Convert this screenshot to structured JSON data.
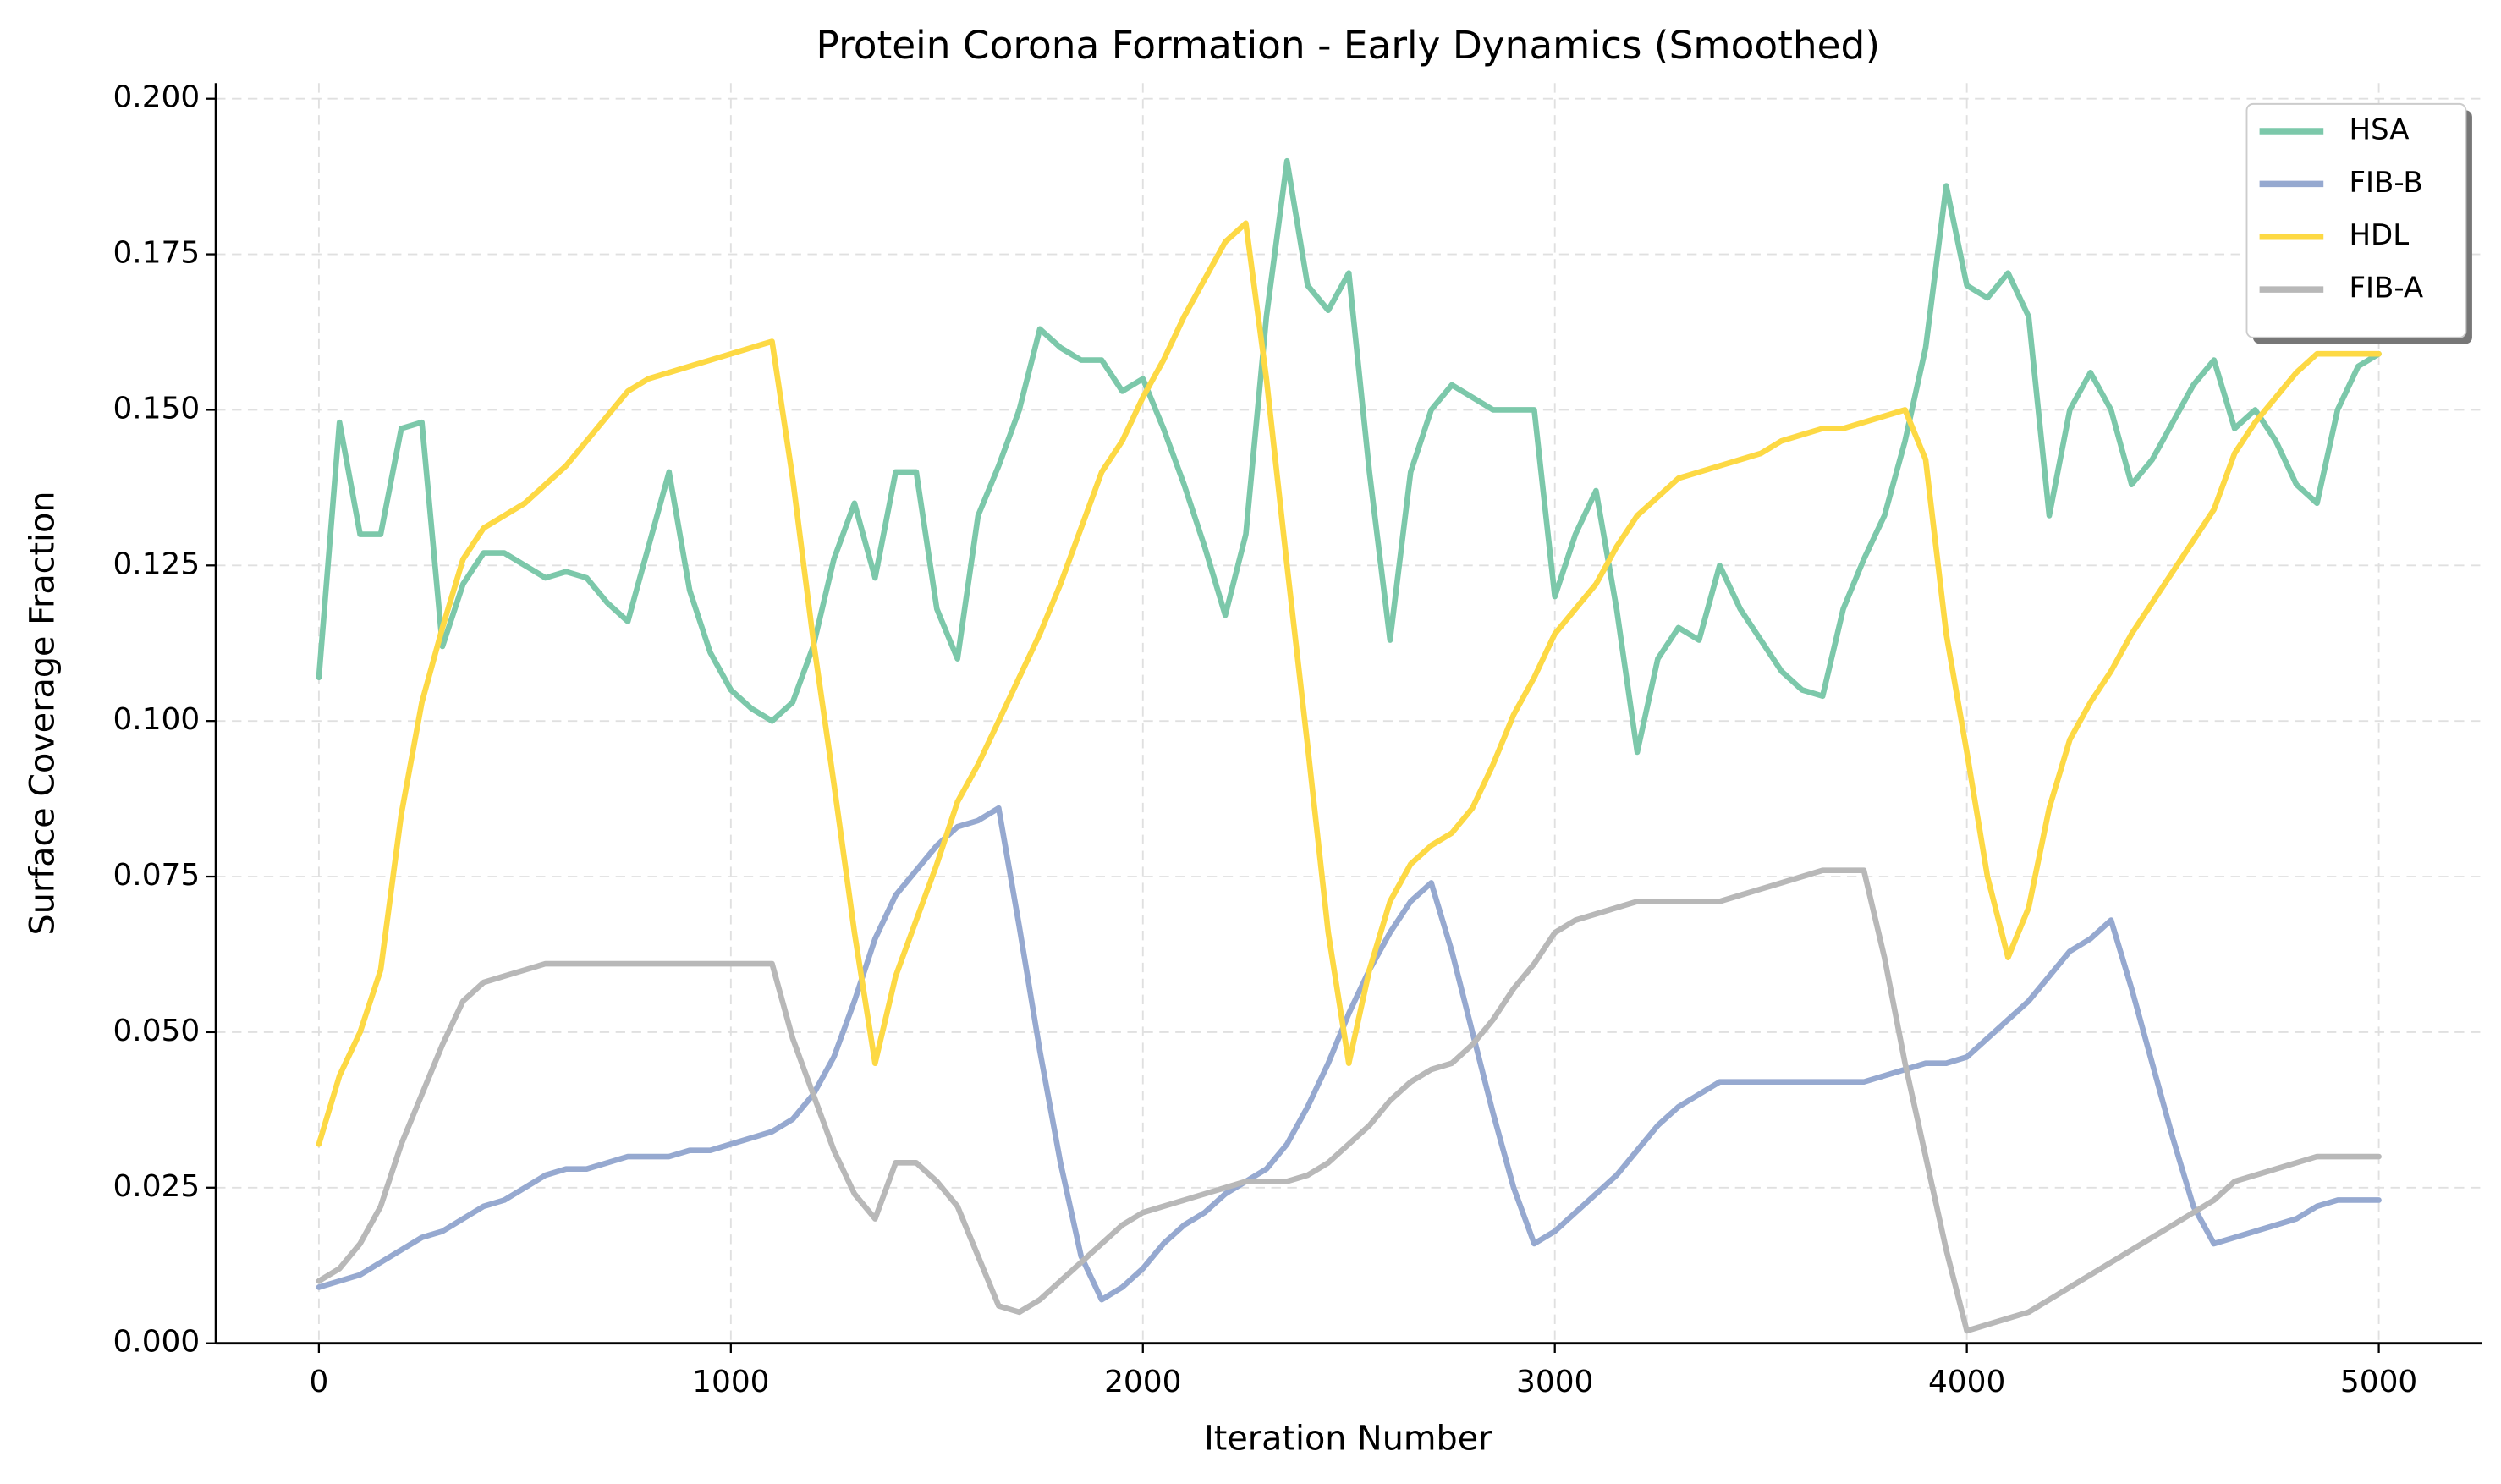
{
  "chart_data": {
    "type": "line",
    "title": "Protein Corona Formation - Early Dynamics (Smoothed)",
    "x_label": "Iteration Number",
    "y_label": "Surface Coverage Fraction",
    "x": [
      0,
      50,
      100,
      150,
      200,
      250,
      300,
      350,
      400,
      450,
      500,
      550,
      600,
      650,
      700,
      750,
      800,
      850,
      900,
      950,
      1000,
      1050,
      1100,
      1150,
      1200,
      1250,
      1300,
      1350,
      1400,
      1450,
      1500,
      1550,
      1600,
      1650,
      1700,
      1750,
      1800,
      1850,
      1900,
      1950,
      2000,
      2050,
      2100,
      2150,
      2200,
      2250,
      2300,
      2350,
      2400,
      2450,
      2500,
      2550,
      2600,
      2650,
      2700,
      2750,
      2800,
      2850,
      2900,
      2950,
      3000,
      3050,
      3100,
      3150,
      3200,
      3250,
      3300,
      3350,
      3400,
      3450,
      3500,
      3550,
      3600,
      3650,
      3700,
      3750,
      3800,
      3850,
      3900,
      3950,
      4000,
      4050,
      4100,
      4150,
      4200,
      4250,
      4300,
      4350,
      4400,
      4450,
      4500,
      4550,
      4600,
      4650,
      4700,
      4750,
      4800,
      4850,
      4900,
      4950,
      5000
    ],
    "series": [
      {
        "name": "HSA",
        "color": "#7cc8aa",
        "values": [
          0.107,
          0.148,
          0.13,
          0.13,
          0.147,
          0.148,
          0.112,
          0.122,
          0.127,
          0.127,
          0.125,
          0.123,
          0.124,
          0.123,
          0.119,
          0.116,
          0.128,
          0.14,
          0.121,
          0.111,
          0.105,
          0.102,
          0.1,
          0.103,
          0.112,
          0.126,
          0.135,
          0.123,
          0.14,
          0.14,
          0.118,
          0.11,
          0.133,
          0.141,
          0.15,
          0.163,
          0.16,
          0.158,
          0.158,
          0.153,
          0.155,
          0.147,
          0.138,
          0.128,
          0.117,
          0.13,
          0.165,
          0.19,
          0.17,
          0.166,
          0.172,
          0.14,
          0.113,
          0.14,
          0.15,
          0.154,
          0.152,
          0.15,
          0.15,
          0.15,
          0.12,
          0.13,
          0.137,
          0.118,
          0.095,
          0.11,
          0.115,
          0.113,
          0.125,
          0.118,
          0.113,
          0.108,
          0.105,
          0.104,
          0.118,
          0.126,
          0.133,
          0.145,
          0.16,
          0.186,
          0.17,
          0.168,
          0.172,
          0.165,
          0.133,
          0.15,
          0.156,
          0.15,
          0.138,
          0.142,
          0.148,
          0.154,
          0.158,
          0.147,
          0.15,
          0.145,
          0.138,
          0.135,
          0.15,
          0.157,
          0.159
        ]
      },
      {
        "name": "FIB-B",
        "color": "#96a9d0",
        "values": [
          0.009,
          0.01,
          0.011,
          0.013,
          0.015,
          0.017,
          0.018,
          0.02,
          0.022,
          0.023,
          0.025,
          0.027,
          0.028,
          0.028,
          0.029,
          0.03,
          0.03,
          0.03,
          0.031,
          0.031,
          0.032,
          0.033,
          0.034,
          0.036,
          0.04,
          0.046,
          0.055,
          0.065,
          0.072,
          0.076,
          0.08,
          0.083,
          0.084,
          0.086,
          0.067,
          0.047,
          0.029,
          0.014,
          0.007,
          0.009,
          0.012,
          0.016,
          0.019,
          0.021,
          0.024,
          0.026,
          0.028,
          0.032,
          0.038,
          0.045,
          0.053,
          0.06,
          0.066,
          0.071,
          0.074,
          0.063,
          0.05,
          0.037,
          0.025,
          0.016,
          0.018,
          0.021,
          0.024,
          0.027,
          0.031,
          0.035,
          0.038,
          0.04,
          0.042,
          0.042,
          0.042,
          0.042,
          0.042,
          0.042,
          0.042,
          0.042,
          0.043,
          0.044,
          0.045,
          0.045,
          0.046,
          0.049,
          0.052,
          0.055,
          0.059,
          0.063,
          0.065,
          0.068,
          0.057,
          0.045,
          0.033,
          0.022,
          0.016,
          0.017,
          0.018,
          0.019,
          0.02,
          0.022,
          0.023,
          0.023,
          0.023
        ]
      },
      {
        "name": "HDL",
        "color": "#fdd944",
        "values": [
          0.032,
          0.043,
          0.05,
          0.06,
          0.085,
          0.103,
          0.115,
          0.126,
          0.131,
          0.133,
          0.135,
          0.138,
          0.141,
          0.145,
          0.149,
          0.153,
          0.155,
          0.156,
          0.157,
          0.158,
          0.159,
          0.16,
          0.161,
          0.139,
          0.113,
          0.09,
          0.066,
          0.045,
          0.059,
          0.068,
          0.077,
          0.087,
          0.093,
          0.1,
          0.107,
          0.114,
          0.122,
          0.131,
          0.14,
          0.145,
          0.152,
          0.158,
          0.165,
          0.171,
          0.177,
          0.18,
          0.155,
          0.125,
          0.096,
          0.066,
          0.045,
          0.06,
          0.071,
          0.077,
          0.08,
          0.082,
          0.086,
          0.093,
          0.101,
          0.107,
          0.114,
          0.118,
          0.122,
          0.128,
          0.133,
          0.136,
          0.139,
          0.14,
          0.141,
          0.142,
          0.143,
          0.145,
          0.146,
          0.147,
          0.147,
          0.148,
          0.149,
          0.15,
          0.142,
          0.114,
          0.095,
          0.075,
          0.062,
          0.07,
          0.086,
          0.097,
          0.103,
          0.108,
          0.114,
          0.119,
          0.124,
          0.129,
          0.134,
          0.143,
          0.148,
          0.152,
          0.156,
          0.159,
          0.159,
          0.159,
          0.159
        ]
      },
      {
        "name": "FIB-A",
        "color": "#b8b8b8",
        "values": [
          0.01,
          0.012,
          0.016,
          0.022,
          0.032,
          0.04,
          0.048,
          0.055,
          0.058,
          0.059,
          0.06,
          0.061,
          0.061,
          0.061,
          0.061,
          0.061,
          0.061,
          0.061,
          0.061,
          0.061,
          0.061,
          0.061,
          0.061,
          0.049,
          0.04,
          0.031,
          0.024,
          0.02,
          0.029,
          0.029,
          0.026,
          0.022,
          0.014,
          0.006,
          0.005,
          0.007,
          0.01,
          0.013,
          0.016,
          0.019,
          0.021,
          0.022,
          0.023,
          0.024,
          0.025,
          0.026,
          0.026,
          0.026,
          0.027,
          0.029,
          0.032,
          0.035,
          0.039,
          0.042,
          0.044,
          0.045,
          0.048,
          0.052,
          0.057,
          0.061,
          0.066,
          0.068,
          0.069,
          0.07,
          0.071,
          0.071,
          0.071,
          0.071,
          0.071,
          0.072,
          0.073,
          0.074,
          0.075,
          0.076,
          0.076,
          0.076,
          0.062,
          0.045,
          0.03,
          0.015,
          0.002,
          0.003,
          0.004,
          0.005,
          0.007,
          0.009,
          0.011,
          0.013,
          0.015,
          0.017,
          0.019,
          0.021,
          0.023,
          0.026,
          0.027,
          0.028,
          0.029,
          0.03,
          0.03,
          0.03,
          0.03
        ]
      }
    ],
    "xlim": [
      -250,
      5250
    ],
    "xticks": [
      0,
      1000,
      2000,
      3000,
      4000,
      5000
    ],
    "ylim": [
      0,
      0.2025
    ],
    "yticks": [
      {
        "value": 0,
        "label": "0.000"
      },
      {
        "value": 0.025,
        "label": "0.025"
      },
      {
        "value": 0.05,
        "label": "0.050"
      },
      {
        "value": 0.075,
        "label": "0.075"
      },
      {
        "value": 0.1,
        "label": "0.100"
      },
      {
        "value": 0.125,
        "label": "0.125"
      },
      {
        "value": 0.15,
        "label": "0.150"
      },
      {
        "value": 0.175,
        "label": "0.175"
      },
      {
        "value": 0.2,
        "label": "0.200"
      }
    ],
    "grid": true,
    "legend": "upper right"
  }
}
